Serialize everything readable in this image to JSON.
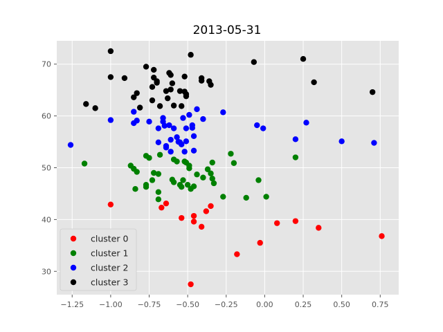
{
  "chart_data": {
    "type": "scatter",
    "title": "2013-05-31",
    "xlabel": "",
    "ylabel": "",
    "xlim": [
      -1.35,
      0.87
    ],
    "ylim": [
      25.5,
      74.5
    ],
    "xticks": [
      -1.25,
      -1.0,
      -0.75,
      -0.5,
      -0.25,
      0.0,
      0.25,
      0.5,
      0.75
    ],
    "xtick_labels": [
      "−1.25",
      "−1.00",
      "−0.75",
      "−0.50",
      "−0.25",
      "0.00",
      "0.25",
      "0.50",
      "0.75"
    ],
    "yticks": [
      30,
      40,
      50,
      60,
      70
    ],
    "ytick_labels": [
      "30",
      "40",
      "50",
      "60",
      "70"
    ],
    "grid": true,
    "legend_position": "lower-left",
    "series": [
      {
        "name": "cluster 0",
        "color": "#ff0000",
        "points": [
          [
            -1.0,
            42.9
          ],
          [
            -0.64,
            43.1
          ],
          [
            -0.67,
            42.3
          ],
          [
            -0.54,
            40.3
          ],
          [
            -0.46,
            40.7
          ],
          [
            -0.46,
            39.6
          ],
          [
            -0.41,
            38.6
          ],
          [
            -0.38,
            41.6
          ],
          [
            -0.35,
            42.6
          ],
          [
            -0.18,
            33.3
          ],
          [
            -0.03,
            35.5
          ],
          [
            0.08,
            39.3
          ],
          [
            0.2,
            39.7
          ],
          [
            0.35,
            38.4
          ],
          [
            0.76,
            36.8
          ],
          [
            -0.48,
            27.5
          ]
        ]
      },
      {
        "name": "cluster 1",
        "color": "#008000",
        "points": [
          [
            -1.17,
            50.8
          ],
          [
            -0.87,
            50.4
          ],
          [
            -0.85,
            49.8
          ],
          [
            -0.83,
            49.2
          ],
          [
            -0.84,
            45.9
          ],
          [
            -0.77,
            52.3
          ],
          [
            -0.75,
            51.9
          ],
          [
            -0.77,
            46.7
          ],
          [
            -0.77,
            46.3
          ],
          [
            -0.73,
            47.6
          ],
          [
            -0.72,
            49.0
          ],
          [
            -0.69,
            48.8
          ],
          [
            -0.69,
            45.3
          ],
          [
            -0.69,
            43.9
          ],
          [
            -0.68,
            52.5
          ],
          [
            -0.6,
            47.7
          ],
          [
            -0.59,
            47.2
          ],
          [
            -0.59,
            51.6
          ],
          [
            -0.57,
            51.2
          ],
          [
            -0.55,
            46.7
          ],
          [
            -0.54,
            46.3
          ],
          [
            -0.53,
            47.6
          ],
          [
            -0.52,
            51.2
          ],
          [
            -0.51,
            51.0
          ],
          [
            -0.5,
            46.7
          ],
          [
            -0.49,
            50.4
          ],
          [
            -0.49,
            49.9
          ],
          [
            -0.48,
            45.9
          ],
          [
            -0.46,
            46.4
          ],
          [
            -0.44,
            48.7
          ],
          [
            -0.4,
            48.1
          ],
          [
            -0.37,
            49.7
          ],
          [
            -0.35,
            48.9
          ],
          [
            -0.34,
            51.0
          ],
          [
            -0.34,
            47.9
          ],
          [
            -0.33,
            47.0
          ],
          [
            -0.27,
            44.4
          ],
          [
            -0.22,
            52.7
          ],
          [
            -0.2,
            50.9
          ],
          [
            -0.12,
            44.2
          ],
          [
            -0.04,
            47.6
          ],
          [
            0.01,
            44.4
          ],
          [
            0.2,
            52.0
          ]
        ]
      },
      {
        "name": "cluster 2",
        "color": "#0000ff",
        "points": [
          [
            -1.26,
            54.4
          ],
          [
            -1.0,
            59.2
          ],
          [
            -0.85,
            60.8
          ],
          [
            -0.85,
            58.6
          ],
          [
            -0.83,
            59.1
          ],
          [
            -0.75,
            58.9
          ],
          [
            -0.69,
            57.6
          ],
          [
            -0.69,
            54.9
          ],
          [
            -0.66,
            59.6
          ],
          [
            -0.66,
            58.9
          ],
          [
            -0.65,
            58.1
          ],
          [
            -0.64,
            54.2
          ],
          [
            -0.64,
            53.9
          ],
          [
            -0.62,
            58.2
          ],
          [
            -0.61,
            55.4
          ],
          [
            -0.61,
            53.1
          ],
          [
            -0.59,
            57.6
          ],
          [
            -0.57,
            55.9
          ],
          [
            -0.56,
            55.0
          ],
          [
            -0.55,
            54.9
          ],
          [
            -0.54,
            54.5
          ],
          [
            -0.53,
            59.6
          ],
          [
            -0.52,
            53.1
          ],
          [
            -0.51,
            55.1
          ],
          [
            -0.51,
            57.6
          ],
          [
            -0.49,
            60.2
          ],
          [
            -0.47,
            57.7
          ],
          [
            -0.47,
            58.2
          ],
          [
            -0.46,
            56.1
          ],
          [
            -0.46,
            53.3
          ],
          [
            -0.44,
            61.3
          ],
          [
            -0.4,
            59.4
          ],
          [
            -0.27,
            60.7
          ],
          [
            -0.05,
            58.2
          ],
          [
            -0.01,
            57.6
          ],
          [
            0.2,
            55.5
          ],
          [
            0.27,
            58.7
          ],
          [
            0.5,
            55.1
          ],
          [
            0.71,
            54.8
          ]
        ]
      },
      {
        "name": "cluster 3",
        "color": "#000000",
        "points": [
          [
            -1.0,
            72.5
          ],
          [
            -1.16,
            62.3
          ],
          [
            -1.1,
            61.5
          ],
          [
            -1.0,
            67.5
          ],
          [
            -0.91,
            67.3
          ],
          [
            -0.85,
            63.6
          ],
          [
            -0.83,
            64.4
          ],
          [
            -0.81,
            61.6
          ],
          [
            -0.77,
            69.5
          ],
          [
            -0.73,
            65.6
          ],
          [
            -0.73,
            63.0
          ],
          [
            -0.72,
            68.9
          ],
          [
            -0.72,
            67.4
          ],
          [
            -0.7,
            66.4
          ],
          [
            -0.7,
            66.7
          ],
          [
            -0.68,
            61.9
          ],
          [
            -0.64,
            64.8
          ],
          [
            -0.63,
            63.4
          ],
          [
            -0.62,
            68.3
          ],
          [
            -0.61,
            67.9
          ],
          [
            -0.61,
            65.1
          ],
          [
            -0.6,
            66.3
          ],
          [
            -0.59,
            62.0
          ],
          [
            -0.55,
            64.8
          ],
          [
            -0.54,
            61.9
          ],
          [
            -0.52,
            67.6
          ],
          [
            -0.52,
            64.7
          ],
          [
            -0.51,
            64.2
          ],
          [
            -0.51,
            63.8
          ],
          [
            -0.48,
            71.8
          ],
          [
            -0.41,
            67.3
          ],
          [
            -0.41,
            66.8
          ],
          [
            -0.36,
            66.7
          ],
          [
            -0.35,
            66.0
          ],
          [
            -0.07,
            70.4
          ],
          [
            0.25,
            71.0
          ],
          [
            0.32,
            66.5
          ],
          [
            0.7,
            64.6
          ]
        ]
      }
    ]
  },
  "colors": {
    "plot_background": "#e5e5e5",
    "grid": "#ffffff"
  }
}
